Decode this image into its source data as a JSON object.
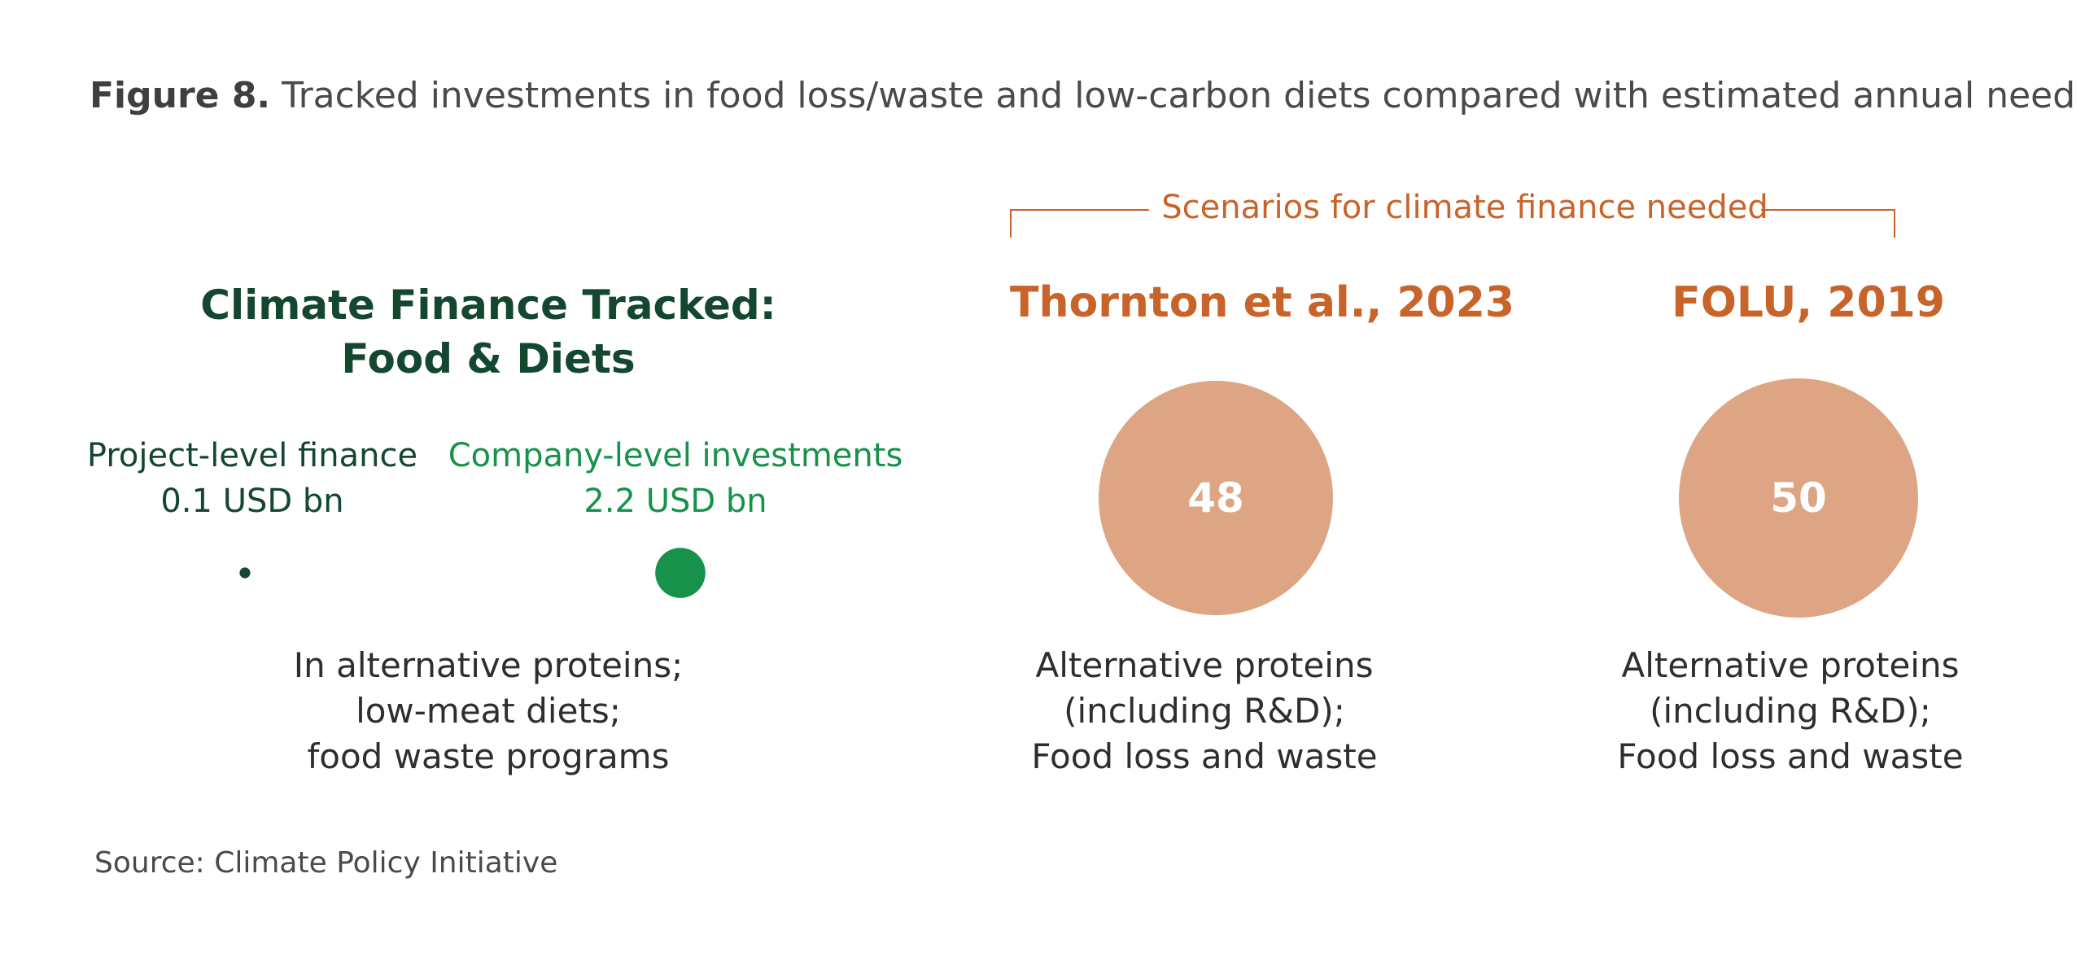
{
  "title": {
    "figure_label": "Figure 8.",
    "text": "Tracked investments in food loss/waste and low-carbon diets compared with estimated annual needs"
  },
  "scenarios_label": "Scenarios for climate finance needed",
  "tracked": {
    "title_line1": "Climate Finance Tracked:",
    "title_line2": "Food & Diets",
    "project": {
      "label": "Project-level finance",
      "value_text": "0.1 USD bn"
    },
    "company": {
      "label": "Company-level investments",
      "value_text": "2.2 USD bn"
    },
    "desc_line1": "In alternative proteins;",
    "desc_line2": "low-meat diets;",
    "desc_line3": "food waste programs"
  },
  "scenarios": {
    "thornton": {
      "title": "Thornton et al., 2023",
      "desc_line1": "Alternative proteins",
      "desc_line2": "(including R&D);",
      "desc_line3": "Food loss and waste"
    },
    "folu": {
      "title": "FOLU, 2019",
      "desc_line1": "Alternative proteins",
      "desc_line2": "(including R&D);",
      "desc_line3": "Food loss and waste"
    }
  },
  "source": "Source: Climate Policy Initiative",
  "colors": {
    "project": "#14472f",
    "company": "#16924a",
    "need": "#dda583",
    "accent": "#c8632a"
  },
  "chart_data": {
    "type": "bubble",
    "unit": "USD bn",
    "series": [
      {
        "name": "Project-level finance",
        "value": 0.1,
        "label": "0.1 USD bn"
      },
      {
        "name": "Company-level investments",
        "value": 2.2,
        "label": "2.2 USD bn"
      },
      {
        "name": "Thornton et al., 2023",
        "value": 48,
        "label": "48"
      },
      {
        "name": "FOLU, 2019",
        "value": 50,
        "label": "50"
      }
    ]
  }
}
